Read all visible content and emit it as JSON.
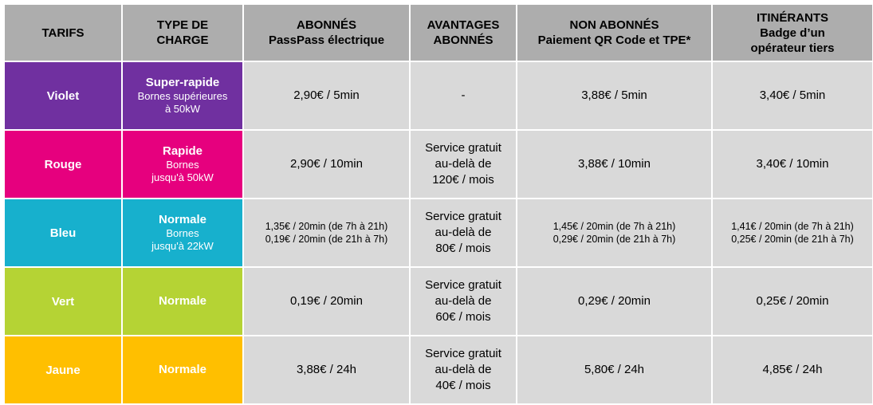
{
  "header": {
    "tarifs": "TARIFS",
    "type_charge": [
      "TYPE DE",
      "CHARGE"
    ],
    "abonnes": [
      "ABONNÉS",
      "PassPass électrique"
    ],
    "avantages": [
      "AVANTAGES",
      "ABONNÉS"
    ],
    "non_abonnes": [
      "NON ABONNÉS",
      "Paiement QR Code et TPE*"
    ],
    "itinerants": [
      "ITINÉRANTS",
      "Badge d’un",
      "opérateur tiers"
    ]
  },
  "colors": {
    "header_bg": "#adadad",
    "cell_bg": "#d9d9d9",
    "violet": "#7030a0",
    "rouge": "#e6007e",
    "bleu": "#17b0cd",
    "vert": "#b5d334",
    "jaune": "#ffbf00"
  },
  "rows": [
    {
      "tarif": "Violet",
      "type_title": "Super-rapide",
      "type_detail": [
        "Bornes supérieures",
        "à 50kW"
      ],
      "abonnes": [
        "2,90€ / 5min"
      ],
      "avantages": [
        "-"
      ],
      "non_abonnes": [
        "3,88€ / 5min"
      ],
      "itinerants": [
        "3,40€ / 5min"
      ]
    },
    {
      "tarif": "Rouge",
      "type_title": "Rapide",
      "type_detail": [
        "Bornes",
        "jusqu'à 50kW"
      ],
      "abonnes": [
        "2,90€ / 10min"
      ],
      "avantages": [
        "Service gratuit",
        "au-delà de",
        "120€ / mois"
      ],
      "non_abonnes": [
        "3,88€ / 10min"
      ],
      "itinerants": [
        "3,40€ / 10min"
      ]
    },
    {
      "tarif": "Bleu",
      "type_title": "Normale",
      "type_detail": [
        "Bornes",
        "jusqu'à 22kW"
      ],
      "abonnes": [
        "1,35€ / 20min (de 7h à 21h)",
        "0,19€ / 20min (de 21h à 7h)"
      ],
      "avantages": [
        "Service gratuit",
        "au-delà de",
        "80€ / mois"
      ],
      "non_abonnes": [
        "1,45€ / 20min (de 7h à 21h)",
        "0,29€ / 20min (de 21h à 7h)"
      ],
      "itinerants": [
        "1,41€ / 20min (de 7h à 21h)",
        "0,25€ / 20min (de 21h à 7h)"
      ]
    },
    {
      "tarif": "Vert",
      "type_title": "Normale",
      "type_detail": [],
      "abonnes": [
        "0,19€ / 20min"
      ],
      "avantages": [
        "Service gratuit",
        "au-delà de",
        "60€ / mois"
      ],
      "non_abonnes": [
        "0,29€ / 20min"
      ],
      "itinerants": [
        "0,25€ / 20min"
      ]
    },
    {
      "tarif": "Jaune",
      "type_title": "Normale",
      "type_detail": [],
      "abonnes": [
        "3,88€ / 24h"
      ],
      "avantages": [
        "Service gratuit",
        "au-delà de",
        "40€ / mois"
      ],
      "non_abonnes": [
        "5,80€ / 24h"
      ],
      "itinerants": [
        "4,85€ / 24h"
      ]
    }
  ]
}
